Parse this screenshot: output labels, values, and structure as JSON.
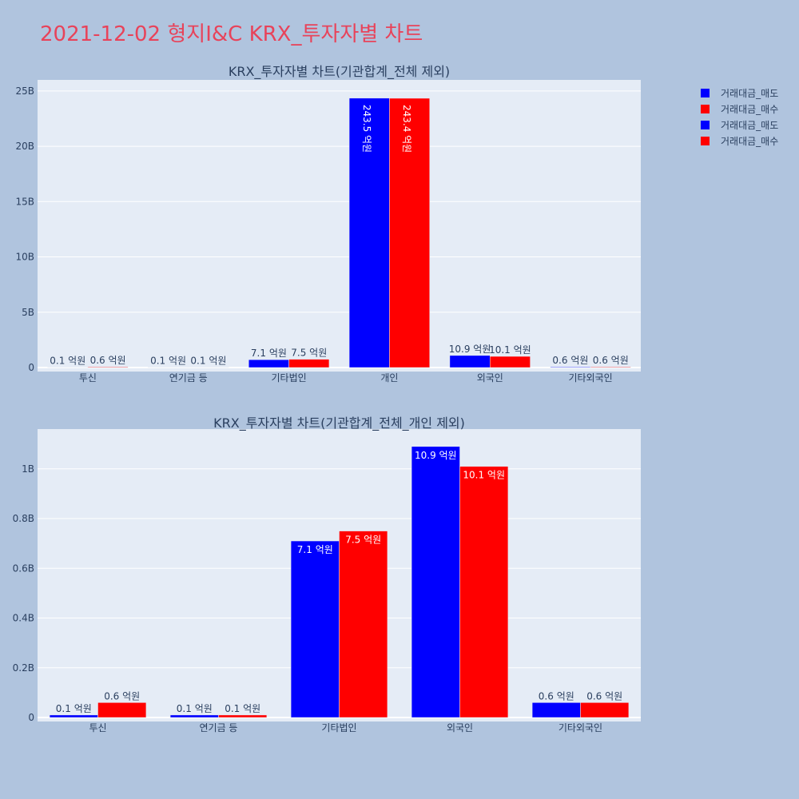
{
  "page": {
    "title": "2021-12-02 형지I&C KRX_투자자별 차트"
  },
  "colors": {
    "sell": "#0000ff",
    "buy": "#ff0000",
    "plot_bg": "#e5ecf6",
    "paper_bg": "#b0c4de",
    "title": "#e8435a"
  },
  "legend": {
    "placement": "top-right",
    "items": [
      {
        "label": "거래대금_매도",
        "color": "#0000ff"
      },
      {
        "label": "거래대금_매수",
        "color": "#ff0000"
      },
      {
        "label": "거래대금_매도",
        "color": "#0000ff"
      },
      {
        "label": "거래대금_매수",
        "color": "#ff0000"
      }
    ]
  },
  "chart_data": [
    {
      "type": "bar",
      "title": "KRX_투자자별 차트(기관합계_전체 제외)",
      "categories": [
        "투신",
        "연기금 등",
        "기타법인",
        "개인",
        "외국인",
        "기타외국인"
      ],
      "series": [
        {
          "name": "거래대금_매도",
          "color": "#0000ff",
          "values": [
            10000000,
            10000000,
            710000000,
            24350000000,
            1090000000,
            60000000
          ],
          "labels": [
            "0.1 억원",
            "0.1 억원",
            "7.1 억원",
            "243.5 억원",
            "10.9 억원",
            "0.6 억원"
          ]
        },
        {
          "name": "거래대금_매수",
          "color": "#ff0000",
          "values": [
            60000000,
            10000000,
            750000000,
            24340000000,
            1010000000,
            60000000
          ],
          "labels": [
            "0.6 억원",
            "0.1 억원",
            "7.5 억원",
            "243.4 억원",
            "10.1 억원",
            "0.6 억원"
          ]
        }
      ],
      "ylim": [
        0,
        26000000000
      ],
      "yticks": [
        0,
        5000000000,
        10000000000,
        15000000000,
        20000000000,
        25000000000
      ],
      "yticklabels": [
        "0",
        "5B",
        "10B",
        "15B",
        "20B",
        "25B"
      ],
      "grid": true
    },
    {
      "type": "bar",
      "title": "KRX_투자자별 차트(기관합계_전체_개인 제외)",
      "categories": [
        "투신",
        "연기금 등",
        "기타법인",
        "외국인",
        "기타외국인"
      ],
      "series": [
        {
          "name": "거래대금_매도",
          "color": "#0000ff",
          "values": [
            10000000,
            10000000,
            710000000,
            1090000000,
            60000000
          ],
          "labels": [
            "0.1 억원",
            "0.1 억원",
            "7.1 억원",
            "10.9 억원",
            "0.6 억원"
          ]
        },
        {
          "name": "거래대금_매수",
          "color": "#ff0000",
          "values": [
            60000000,
            10000000,
            750000000,
            1010000000,
            60000000
          ],
          "labels": [
            "0.6 억원",
            "0.1 억원",
            "7.5 억원",
            "10.1 억원",
            "0.6 억원"
          ]
        }
      ],
      "ylim": [
        0,
        1160000000
      ],
      "yticks": [
        0,
        200000000,
        400000000,
        600000000,
        800000000,
        1000000000
      ],
      "yticklabels": [
        "0",
        "0.2B",
        "0.4B",
        "0.6B",
        "0.8B",
        "1B"
      ],
      "grid": true
    }
  ]
}
